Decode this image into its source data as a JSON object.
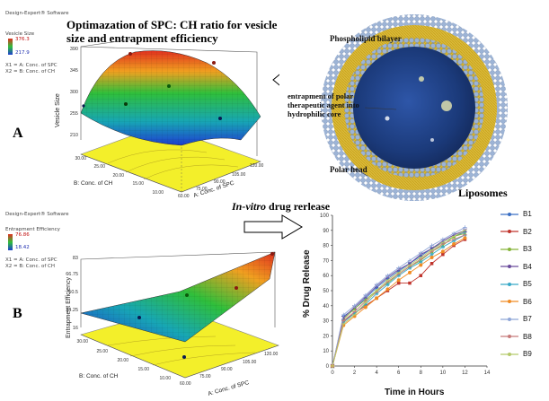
{
  "panel_a": {
    "letter": "A",
    "software": "Design-Expert® Software",
    "factor_name": "Vesicle Size",
    "range_high": "376.3",
    "range_low": "217.9",
    "x1": "X1 = A: Conc. of SPC",
    "x2": "X2 = B: Conc. of CH",
    "title": "Optimazation of SPC: CH ratio for vesicle size and entrapment efficiency",
    "z_axis_label": "Vesicle Size",
    "z_ticks": [
      "210",
      "255",
      "300",
      "345",
      "390"
    ],
    "a_axis_label": "A: Conc. of SPC",
    "a_ticks": [
      "60.00",
      "75.00",
      "90.00",
      "105.00",
      "120.00"
    ],
    "b_axis_label": "B: Conc. of CH",
    "b_ticks": [
      "10.00",
      "15.00",
      "20.00",
      "25.00",
      "30.00"
    ]
  },
  "panel_b": {
    "letter": "B",
    "software": "Design-Expert® Software",
    "factor_name": "Entrapment Efficiency",
    "range_high": "76.86",
    "range_low": "18.42",
    "x1": "X1 = A: Conc. of SPC",
    "x2": "X2 = B: Conc. of CH",
    "z_axis_label": "Entrapment Efficiency",
    "z_ticks": [
      "16",
      "34.25",
      "50.5",
      "66.75",
      "83"
    ],
    "a_axis_label": "A: Conc. of SPC",
    "a_ticks": [
      "60.00",
      "75.00",
      "90.00",
      "105.00",
      "120.00"
    ],
    "b_axis_label": "B: Conc. of CH",
    "b_ticks": [
      "10.00",
      "15.00",
      "20.00",
      "25.00",
      "30.00"
    ]
  },
  "liposome": {
    "phospholipid": "Phospholipid bilayer",
    "entrapment": "entrapment of polar therapeutic agent into hydrophilic core",
    "polar_head": "Polar head",
    "caption": "Liposomes"
  },
  "release_title": {
    "italic": "In-vitro",
    "rest": " drug rerlease"
  },
  "colors": {
    "rsm_high": "#e0301e",
    "rsm_mid": "#2fbf3b",
    "rsm_low": "#1e3fd0",
    "floor": "#f3ef2a",
    "bilayer": "#8ea7c9",
    "tails": "#c9a21a"
  },
  "chart_data": {
    "type": "line",
    "xlabel": "Time in Hours",
    "ylabel": "% Drug Release",
    "xlim": [
      0,
      14
    ],
    "ylim": [
      0,
      100
    ],
    "x_ticks": [
      "0",
      "2",
      "4",
      "6",
      "8",
      "10",
      "12",
      "14"
    ],
    "y_ticks": [
      "0",
      "10",
      "20",
      "30",
      "40",
      "50",
      "60",
      "70",
      "80",
      "90",
      "100"
    ],
    "x": [
      0,
      1,
      2,
      3,
      4,
      5,
      6,
      7,
      8,
      9,
      10,
      11,
      12
    ],
    "series": [
      {
        "name": "B1",
        "color": "#3a6fc4",
        "marker": "diamond",
        "values": [
          0,
          33,
          38,
          45,
          52,
          58,
          63,
          68,
          73,
          78,
          82,
          86,
          89
        ]
      },
      {
        "name": "B2",
        "color": "#c0342c",
        "marker": "square",
        "values": [
          0,
          30,
          35,
          40,
          45,
          50,
          55,
          55,
          60,
          68,
          74,
          80,
          84
        ]
      },
      {
        "name": "B3",
        "color": "#86b53a",
        "marker": "triangle",
        "values": [
          0,
          31,
          38,
          44,
          50,
          55,
          61,
          66,
          70,
          76,
          80,
          86,
          88
        ]
      },
      {
        "name": "B4",
        "color": "#6a4c9c",
        "marker": "x",
        "values": [
          0,
          32,
          39,
          46,
          53,
          59,
          64,
          68,
          74,
          78,
          83,
          87,
          90
        ]
      },
      {
        "name": "B5",
        "color": "#38a9c8",
        "marker": "star",
        "values": [
          0,
          29,
          35,
          41,
          48,
          54,
          60,
          65,
          69,
          74,
          79,
          83,
          87
        ]
      },
      {
        "name": "B6",
        "color": "#f08c24",
        "marker": "circle",
        "values": [
          0,
          27,
          33,
          39,
          45,
          51,
          57,
          62,
          67,
          72,
          76,
          81,
          85
        ]
      },
      {
        "name": "B7",
        "color": "#8fa6d8",
        "marker": "plus",
        "values": [
          0,
          34,
          40,
          47,
          54,
          60,
          65,
          70,
          75,
          80,
          84,
          88,
          92
        ]
      },
      {
        "name": "B8",
        "color": "#c77b7b",
        "marker": "dash",
        "values": [
          0,
          30,
          36,
          43,
          49,
          56,
          61,
          66,
          71,
          76,
          81,
          84,
          87
        ]
      },
      {
        "name": "B9",
        "color": "#b5c96a",
        "marker": "dash",
        "values": [
          0,
          28,
          34,
          42,
          50,
          57,
          62,
          67,
          72,
          77,
          82,
          86,
          90
        ]
      }
    ]
  }
}
